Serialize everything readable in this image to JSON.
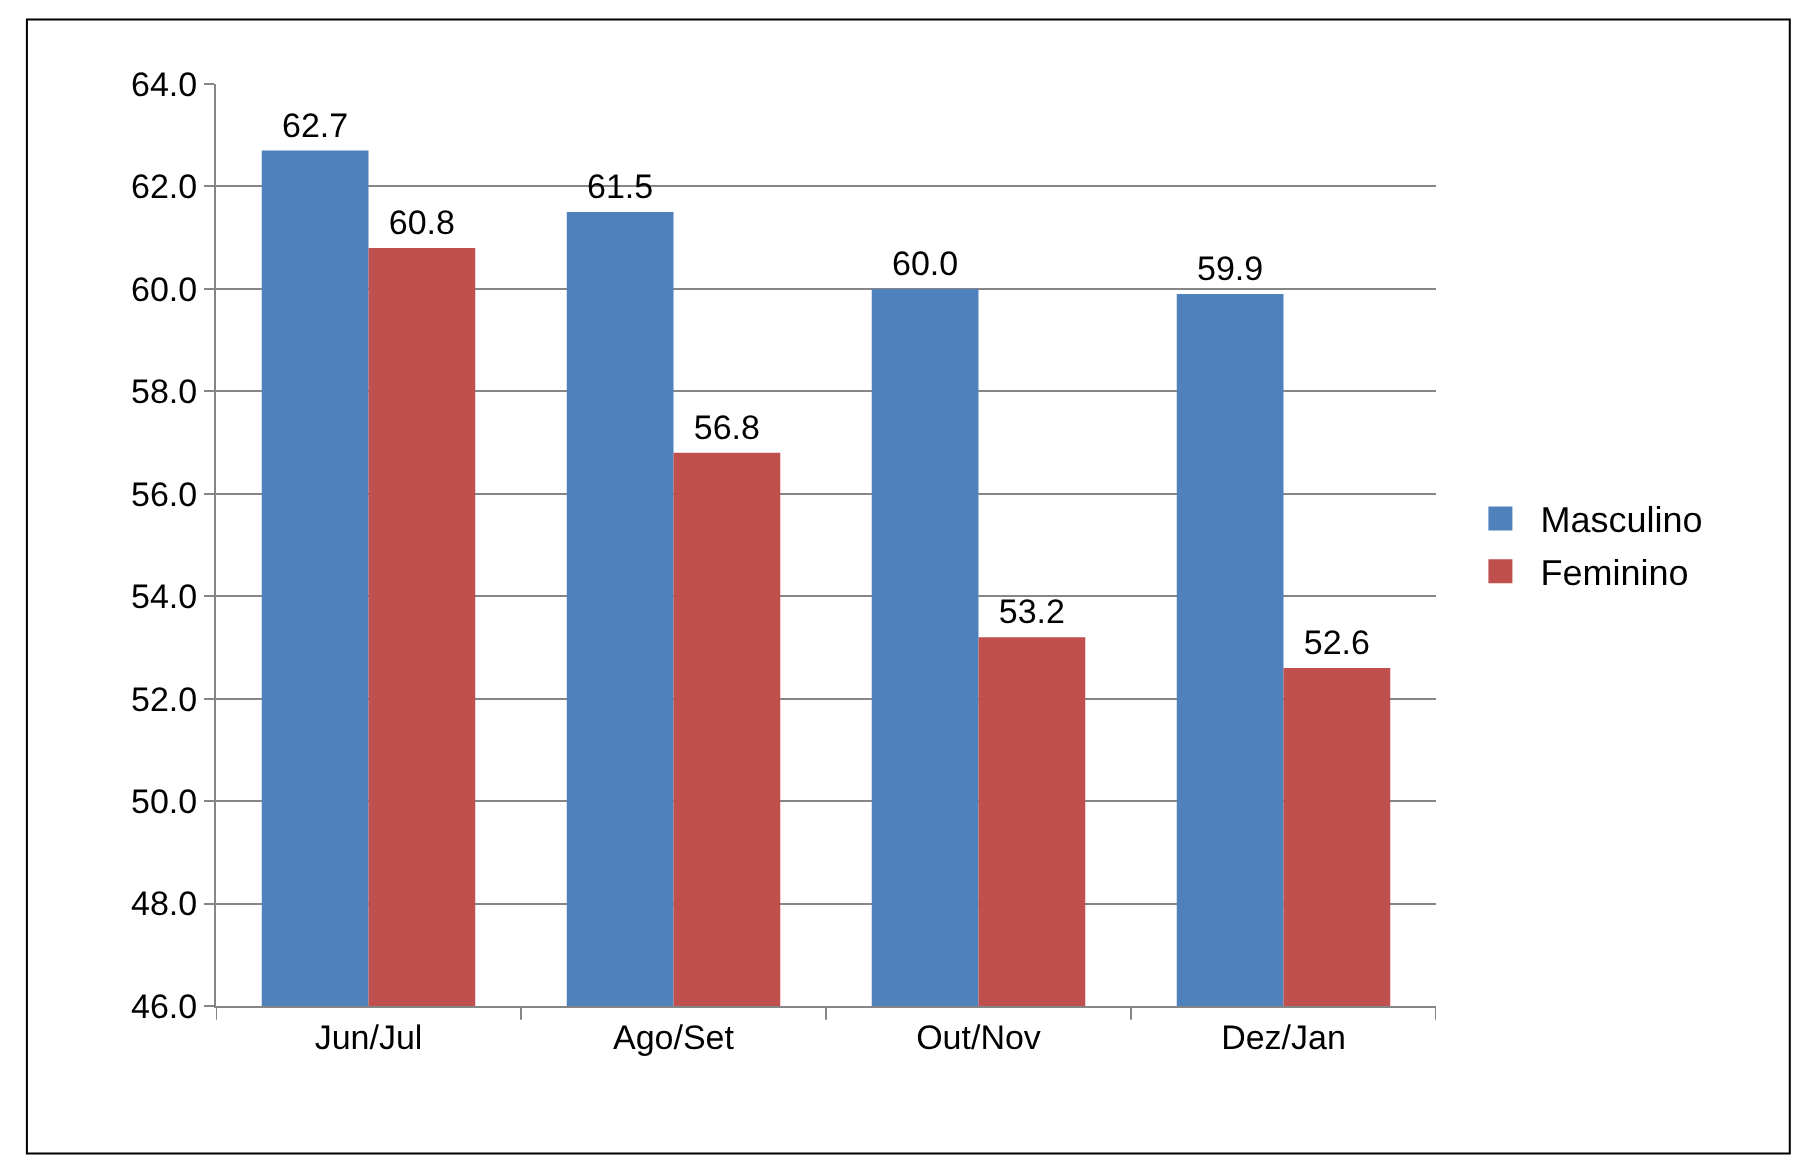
{
  "chart_data": {
    "type": "bar",
    "categories": [
      "Jun/Jul",
      "Ago/Set",
      "Out/Nov",
      "Dez/Jan"
    ],
    "series": [
      {
        "name": "Masculino",
        "color": "#4f81bd",
        "values": [
          62.7,
          61.5,
          60.0,
          59.9
        ],
        "value_labels": [
          "62.7",
          "61.5",
          "60.0",
          "59.9"
        ]
      },
      {
        "name": "Feminino",
        "color": "#c0504d",
        "values": [
          60.8,
          56.8,
          53.2,
          52.6
        ],
        "value_labels": [
          "60.8",
          "56.8",
          "53.2",
          "52.6"
        ]
      }
    ],
    "ylim": [
      46,
      64
    ],
    "yticks": [
      {
        "value": 46,
        "label": "46.0"
      },
      {
        "value": 48,
        "label": "48.0"
      },
      {
        "value": 50,
        "label": "50.0"
      },
      {
        "value": 52,
        "label": "52.0"
      },
      {
        "value": 54,
        "label": "54.0"
      },
      {
        "value": 56,
        "label": "56.0"
      },
      {
        "value": 58,
        "label": "58.0"
      },
      {
        "value": 60,
        "label": "60.0"
      },
      {
        "value": 62,
        "label": "62.0"
      },
      {
        "value": 64,
        "label": "64.0"
      }
    ],
    "grid": "y",
    "legend": "right"
  }
}
